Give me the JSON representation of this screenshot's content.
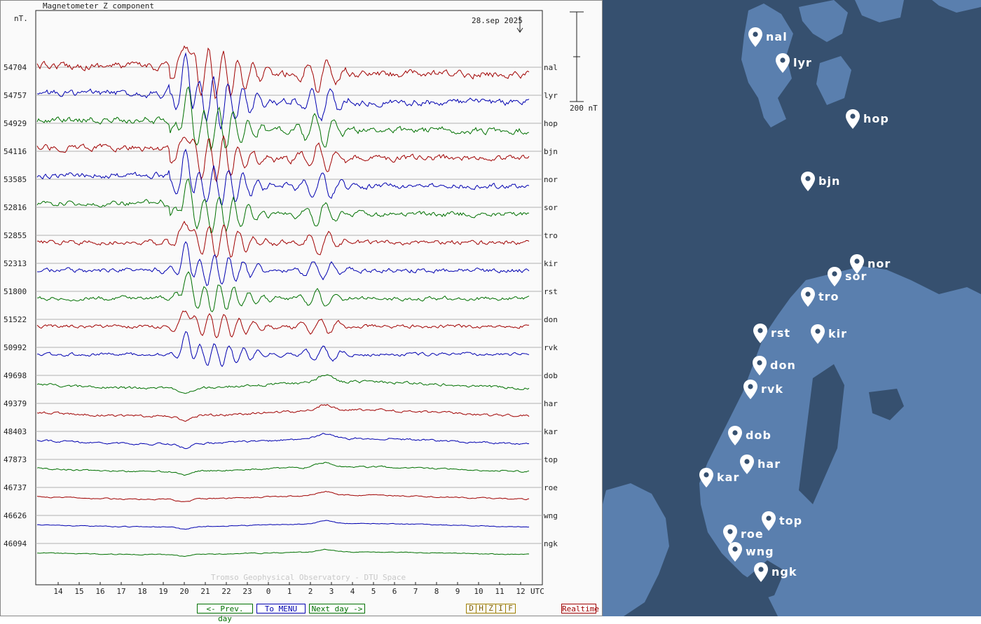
{
  "plot": {
    "title": "Magnetometer Z component",
    "unit": "nT.",
    "date": "28.sep 2025",
    "scale_label": "200 nT",
    "watermark": "Tromso Geophysical Observatory - DTU Space",
    "xaxis_ticks": [
      "14",
      "15",
      "16",
      "17",
      "18",
      "19",
      "20",
      "21",
      "22",
      "23",
      "0",
      "1",
      "2",
      "3",
      "4",
      "5",
      "6",
      "7",
      "8",
      "9",
      "10",
      "11",
      "12"
    ],
    "xaxis_unit": "UTC"
  },
  "buttons": {
    "prev": "<- Prev. day",
    "menu": "To MENU",
    "next": "Next day ->",
    "components": [
      "D",
      "H",
      "Z",
      "I",
      "F"
    ],
    "realtime": "Realtime"
  },
  "colors": {
    "red": "#a00000",
    "blue": "#0000b0",
    "green": "#007000"
  },
  "chart_data": {
    "type": "line",
    "title": "Magnetometer Z component",
    "ylabel": "nT.",
    "x_unit": "UTC",
    "scale": "200 nT",
    "stations": [
      {
        "code": "nal",
        "baseline": "54704",
        "color": "red"
      },
      {
        "code": "lyr",
        "baseline": "54757",
        "color": "blue"
      },
      {
        "code": "hop",
        "baseline": "54929",
        "color": "green"
      },
      {
        "code": "bjn",
        "baseline": "54116",
        "color": "red"
      },
      {
        "code": "nor",
        "baseline": "53585",
        "color": "blue"
      },
      {
        "code": "sor",
        "baseline": "52816",
        "color": "green"
      },
      {
        "code": "tro",
        "baseline": "52855",
        "color": "red"
      },
      {
        "code": "kir",
        "baseline": "52313",
        "color": "blue"
      },
      {
        "code": "rst",
        "baseline": "51800",
        "color": "green"
      },
      {
        "code": "don",
        "baseline": "51522",
        "color": "red"
      },
      {
        "code": "rvk",
        "baseline": "50992",
        "color": "blue"
      },
      {
        "code": "dob",
        "baseline": "49698",
        "color": "green"
      },
      {
        "code": "har",
        "baseline": "49379",
        "color": "red"
      },
      {
        "code": "kar",
        "baseline": "48403",
        "color": "blue"
      },
      {
        "code": "top",
        "baseline": "47873",
        "color": "green"
      },
      {
        "code": "roe",
        "baseline": "46737",
        "color": "red"
      },
      {
        "code": "wng",
        "baseline": "46626",
        "color": "blue"
      },
      {
        "code": "ngk",
        "baseline": "46094",
        "color": "green"
      }
    ]
  },
  "map": {
    "stations": [
      {
        "code": "nal"
      },
      {
        "code": "lyr"
      },
      {
        "code": "hop"
      },
      {
        "code": "bjn"
      },
      {
        "code": "nor"
      },
      {
        "code": "sor"
      },
      {
        "code": "tro"
      },
      {
        "code": "rst"
      },
      {
        "code": "kir"
      },
      {
        "code": "don"
      },
      {
        "code": "rvk"
      },
      {
        "code": "dob"
      },
      {
        "code": "har"
      },
      {
        "code": "kar"
      },
      {
        "code": "top"
      },
      {
        "code": "roe"
      },
      {
        "code": "wng"
      },
      {
        "code": "ngk"
      }
    ]
  }
}
